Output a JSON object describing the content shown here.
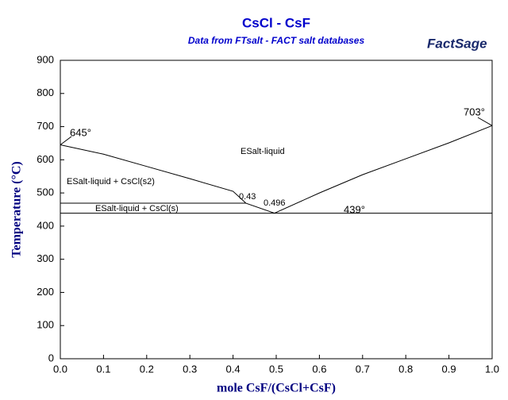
{
  "chart_data": {
    "type": "line",
    "title": "CsCl - CsF",
    "subtitle": "Data from FTsalt - FACT salt databases",
    "logo": "FactSage",
    "x_label": "mole CsF/(CsCl+CsF)",
    "y_label": "Temperature (°C)",
    "xlim": [
      0,
      1
    ],
    "ylim": [
      0,
      900
    ],
    "xticks": [
      {
        "value": 0,
        "label": "0.0"
      },
      0.1,
      0.2,
      0.3,
      0.4,
      0.5,
      0.6,
      0.7,
      0.8,
      0.9,
      {
        "value": 1,
        "label": "1.0"
      }
    ],
    "yticks": [
      0,
      100,
      200,
      300,
      400,
      500,
      600,
      700,
      800,
      900
    ],
    "series": [
      {
        "color": "#000000",
        "x": [
          0,
          0.1,
          0.2,
          0.3,
          0.4,
          0.43,
          0.496,
          0.6,
          0.7,
          0.8,
          0.9,
          1
        ],
        "values": [
          645,
          617,
          580,
          543,
          505,
          469,
          439,
          500,
          555,
          603,
          651,
          703
        ]
      },
      {
        "color": "#000000",
        "x": [
          0,
          0.43
        ],
        "values": [
          469,
          469
        ]
      },
      {
        "color": "#000000",
        "x": [
          0,
          1
        ],
        "values": [
          439,
          439
        ]
      }
    ],
    "annotations": [
      "645°",
      "703°",
      "439°",
      "0.43",
      "0.496",
      "ESalt-liquid",
      "ESalt-liquid + CsCl(s2)",
      "ESalt-liquid + CsCl(s)"
    ]
  }
}
